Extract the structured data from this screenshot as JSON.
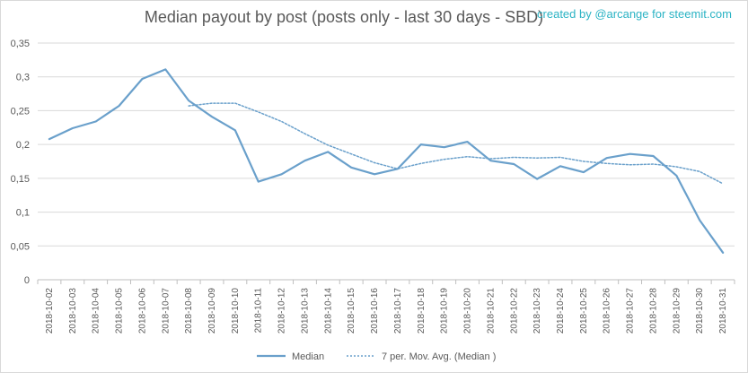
{
  "chart_data": {
    "type": "line",
    "title": "Median payout by post (posts only - last 30 days - SBD)",
    "credit": "created by @arcange for steemit.com",
    "categories": [
      "2018-10-02",
      "2018-10-03",
      "2018-10-04",
      "2018-10-05",
      "2018-10-06",
      "2018-10-07",
      "2018-10-08",
      "2018-10-09",
      "2018-10-10",
      "2018-10-11",
      "2018-10-12",
      "2018-10-13",
      "2018-10-14",
      "2018-10-15",
      "2018-10-16",
      "2018-10-17",
      "2018-10-18",
      "2018-10-19",
      "2018-10-20",
      "2018-10-21",
      "2018-10-22",
      "2018-10-23",
      "2018-10-24",
      "2018-10-25",
      "2018-10-26",
      "2018-10-27",
      "2018-10-28",
      "2018-10-29",
      "2018-10-30",
      "2018-10-31"
    ],
    "series": [
      {
        "name": "Median",
        "style": "solid",
        "values": [
          0.208,
          0.224,
          0.234,
          0.257,
          0.297,
          0.311,
          0.265,
          0.241,
          0.221,
          0.145,
          0.156,
          0.176,
          0.189,
          0.166,
          0.156,
          0.164,
          0.2,
          0.196,
          0.204,
          0.176,
          0.171,
          0.149,
          0.168,
          0.159,
          0.18,
          0.186,
          0.183,
          0.154,
          0.088,
          0.04
        ]
      },
      {
        "name": "7 per. Mov. Avg. (Median )",
        "style": "dotted",
        "values": [
          null,
          null,
          null,
          null,
          null,
          null,
          0.257,
          0.261,
          0.261,
          0.248,
          0.234,
          0.216,
          0.199,
          0.186,
          0.173,
          0.164,
          0.172,
          0.178,
          0.182,
          0.179,
          0.181,
          0.18,
          0.181,
          0.175,
          0.172,
          0.17,
          0.171,
          0.167,
          0.16,
          0.142
        ]
      }
    ],
    "yticks": [
      "0",
      "0,05",
      "0,1",
      "0,15",
      "0,2",
      "0,25",
      "0,3",
      "0,35"
    ],
    "ylim": [
      0,
      0.35
    ],
    "grid": "horizontal",
    "legend_position": "bottom",
    "xlabel": "",
    "ylabel": "",
    "colors": {
      "line": "#6aa0cb",
      "grid": "#d9d9d9",
      "axis": "#bfbfbf",
      "credit": "#2bb3c4",
      "text": "#595959"
    }
  }
}
